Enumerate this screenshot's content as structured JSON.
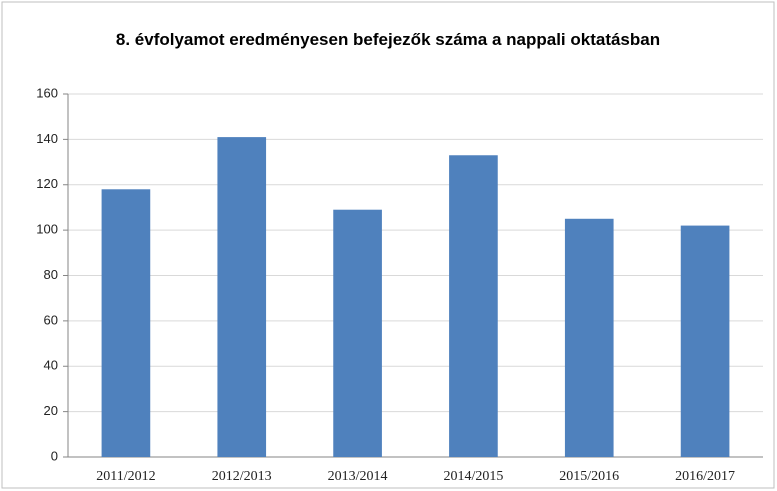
{
  "chart_data": {
    "type": "bar",
    "title": "8. évfolyamot eredményesen befejezők száma  a nappali oktatásban",
    "categories": [
      "2011/2012",
      "2012/2013",
      "2013/2014",
      "2014/2015",
      "2015/2016",
      "2016/2017"
    ],
    "values": [
      118,
      141,
      109,
      133,
      105,
      102
    ],
    "color": "#4f81bd",
    "ylim": [
      0,
      160
    ],
    "yticks": [
      0,
      20,
      40,
      60,
      80,
      100,
      120,
      140,
      160
    ],
    "grid": true
  }
}
